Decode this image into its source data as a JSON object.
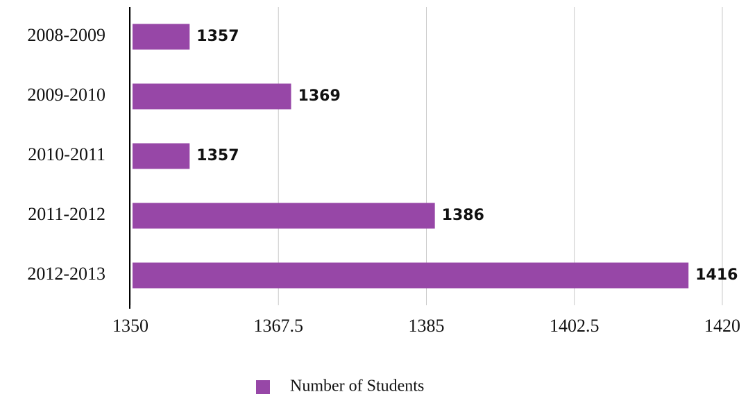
{
  "chart_data": {
    "type": "bar",
    "orientation": "horizontal",
    "categories": [
      "2008-2009",
      "2009-2010",
      "2010-2011",
      "2011-2012",
      "2012-2013"
    ],
    "series": [
      {
        "name": "Number of Students",
        "color": "#9747a7",
        "values": [
          1357,
          1369,
          1357,
          1386,
          1416
        ]
      }
    ],
    "xlim": [
      1350,
      1420
    ],
    "xticks": [
      1350,
      1367.5,
      1385,
      1402.5,
      1420
    ],
    "grid": true,
    "legend": "bottom"
  }
}
